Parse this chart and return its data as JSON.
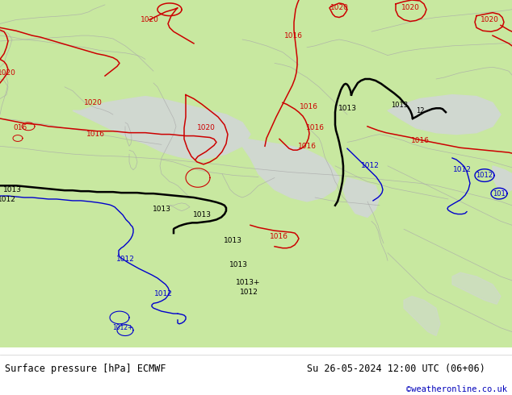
{
  "title_left": "Surface pressure [hPa] ECMWF",
  "title_right": "Su 26-05-2024 12:00 UTC (06+06)",
  "credit": "©weatheronline.co.uk",
  "land_color": "#c8e8a0",
  "sea_color": "#d0d8d0",
  "bg_color": "#ffffff",
  "footer_bg": "#ffffff",
  "text_color": "#000000",
  "credit_color": "#0000bb",
  "red_color": "#cc0000",
  "blue_color": "#0000cc",
  "black_color": "#000000",
  "gray_color": "#aaaaaa",
  "figsize": [
    6.34,
    4.9
  ],
  "dpi": 100
}
